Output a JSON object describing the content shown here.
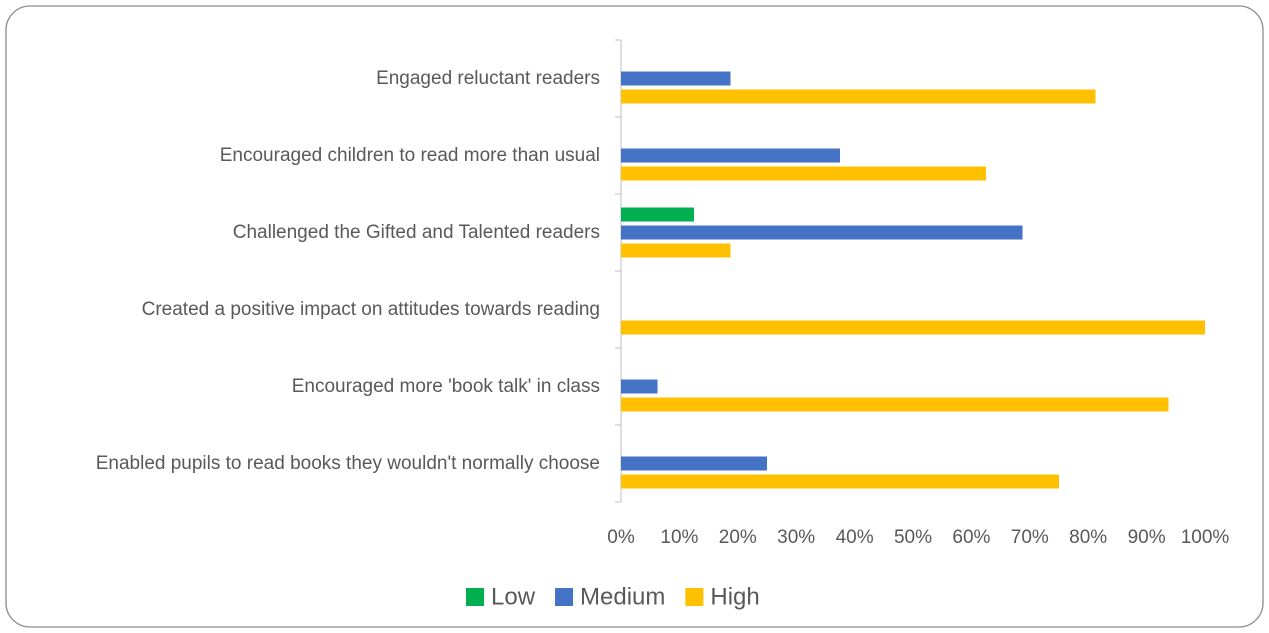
{
  "chart_data": {
    "type": "hbar",
    "categories": [
      "Engaged reluctant readers",
      "Encouraged children to read more than usual",
      "Challenged the Gifted and Talented readers",
      "Created a positive impact on attitudes towards reading",
      "Encouraged more 'book talk' in class",
      "Enabled pupils to read books they wouldn't normally choose"
    ],
    "series": [
      {
        "name": "Low",
        "color": "#00b050",
        "values": [
          0,
          0,
          12.5,
          0,
          0,
          0
        ]
      },
      {
        "name": "Medium",
        "color": "#4472c4",
        "values": [
          18.75,
          37.5,
          68.75,
          0,
          6.25,
          25
        ]
      },
      {
        "name": "High",
        "color": "#ffc000",
        "values": [
          81.25,
          62.5,
          18.75,
          100,
          93.75,
          75
        ]
      }
    ],
    "xlim": [
      0,
      100
    ],
    "xticks": [
      {
        "value": 0,
        "label": "0%"
      },
      {
        "value": 10,
        "label": "10%"
      },
      {
        "value": 20,
        "label": "20%"
      },
      {
        "value": 30,
        "label": "30%"
      },
      {
        "value": 40,
        "label": "40%"
      },
      {
        "value": 50,
        "label": "50%"
      },
      {
        "value": 60,
        "label": "60%"
      },
      {
        "value": 70,
        "label": "70%"
      },
      {
        "value": 80,
        "label": "80%"
      },
      {
        "value": 90,
        "label": "90%"
      },
      {
        "value": 100,
        "label": "100%"
      }
    ],
    "legend": "bottom"
  }
}
